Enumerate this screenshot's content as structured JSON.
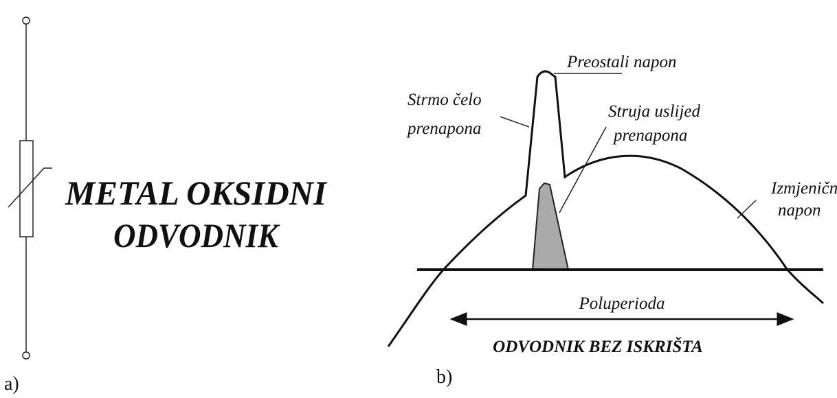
{
  "panel_a": {
    "label": "a)",
    "title_lines": [
      "METAL OKSIDNI",
      "ODVODNIK"
    ]
  },
  "panel_b": {
    "label": "b)",
    "annotations": [
      {
        "lines": [
          "Preostali napon"
        ]
      },
      {
        "lines": [
          "Strmo čelo",
          "prenapona"
        ]
      },
      {
        "lines": [
          "Struja uslijed",
          "prenapona"
        ]
      },
      {
        "lines": [
          "Izmjenični",
          "napon"
        ]
      }
    ],
    "period_label": "Poluperioda",
    "caption": "ODVODNIK BEZ ISKRIŠTA"
  }
}
